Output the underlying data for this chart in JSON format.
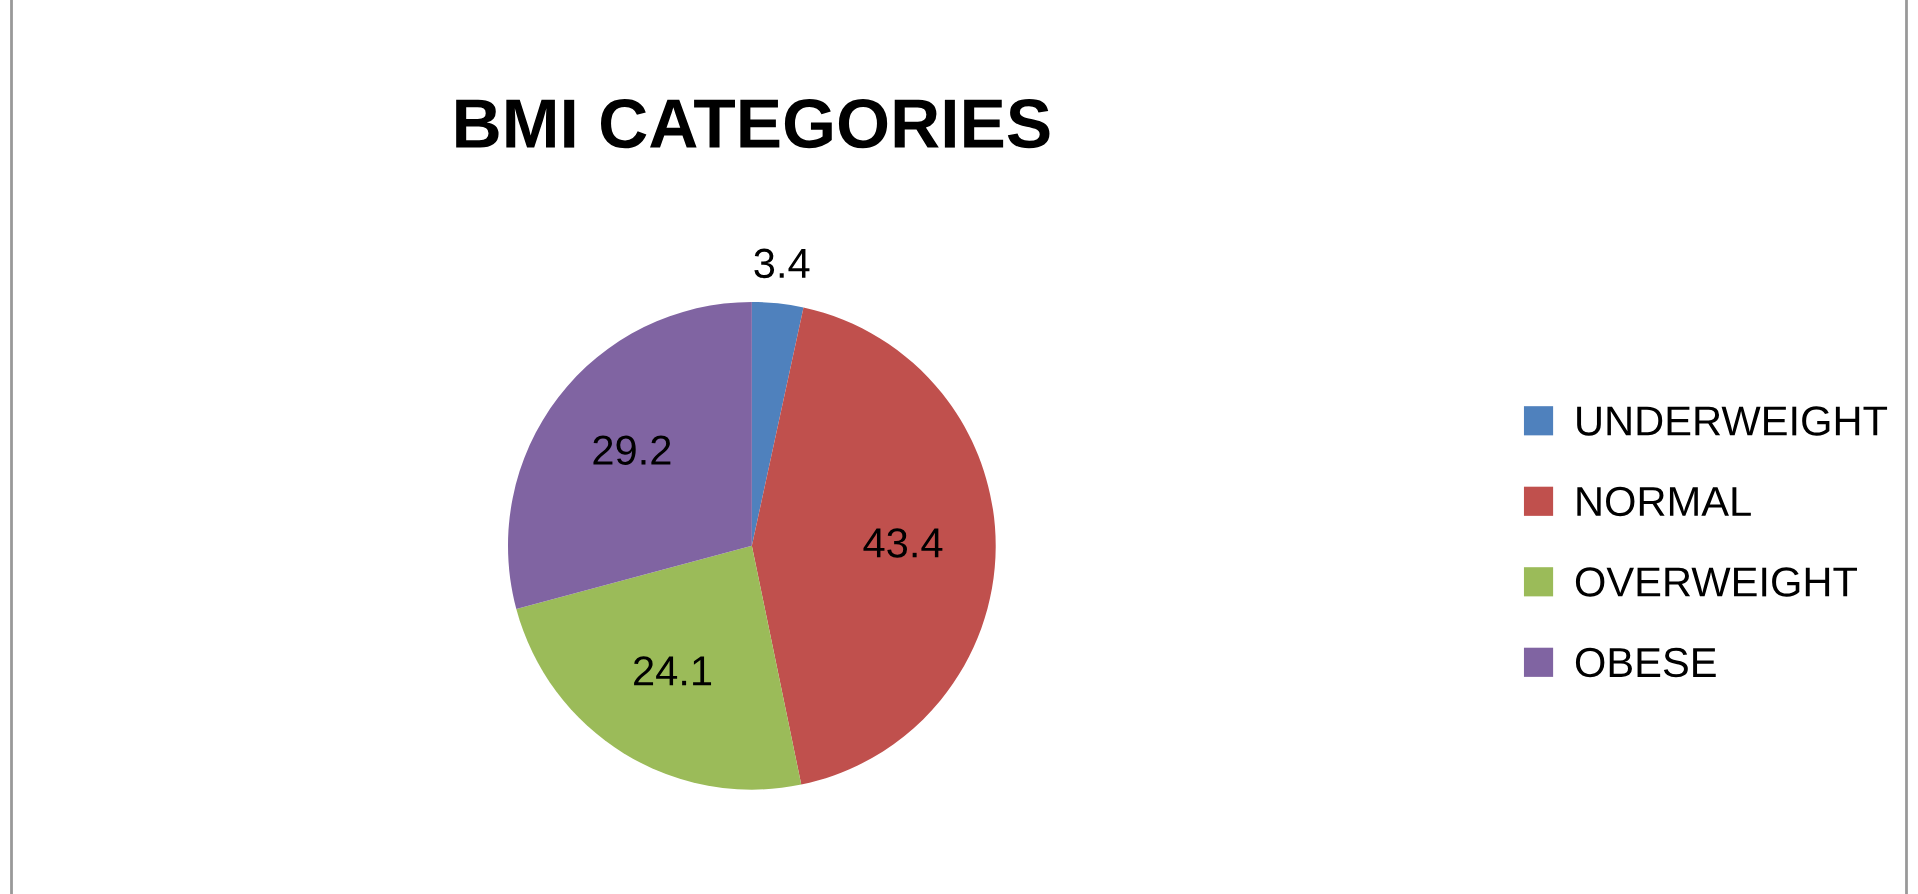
{
  "chart_data": {
    "type": "pie",
    "title": "BMI CATEGORIES",
    "categories": [
      "UNDERWEIGHT",
      "NORMAL",
      "OVERWEIGHT",
      "OBESE"
    ],
    "values": [
      3.4,
      43.4,
      24.1,
      29.2
    ],
    "colors": [
      "#4f81bd",
      "#c0504d",
      "#9bbb59",
      "#8064a2"
    ],
    "data_labels": true,
    "legend": "right"
  }
}
